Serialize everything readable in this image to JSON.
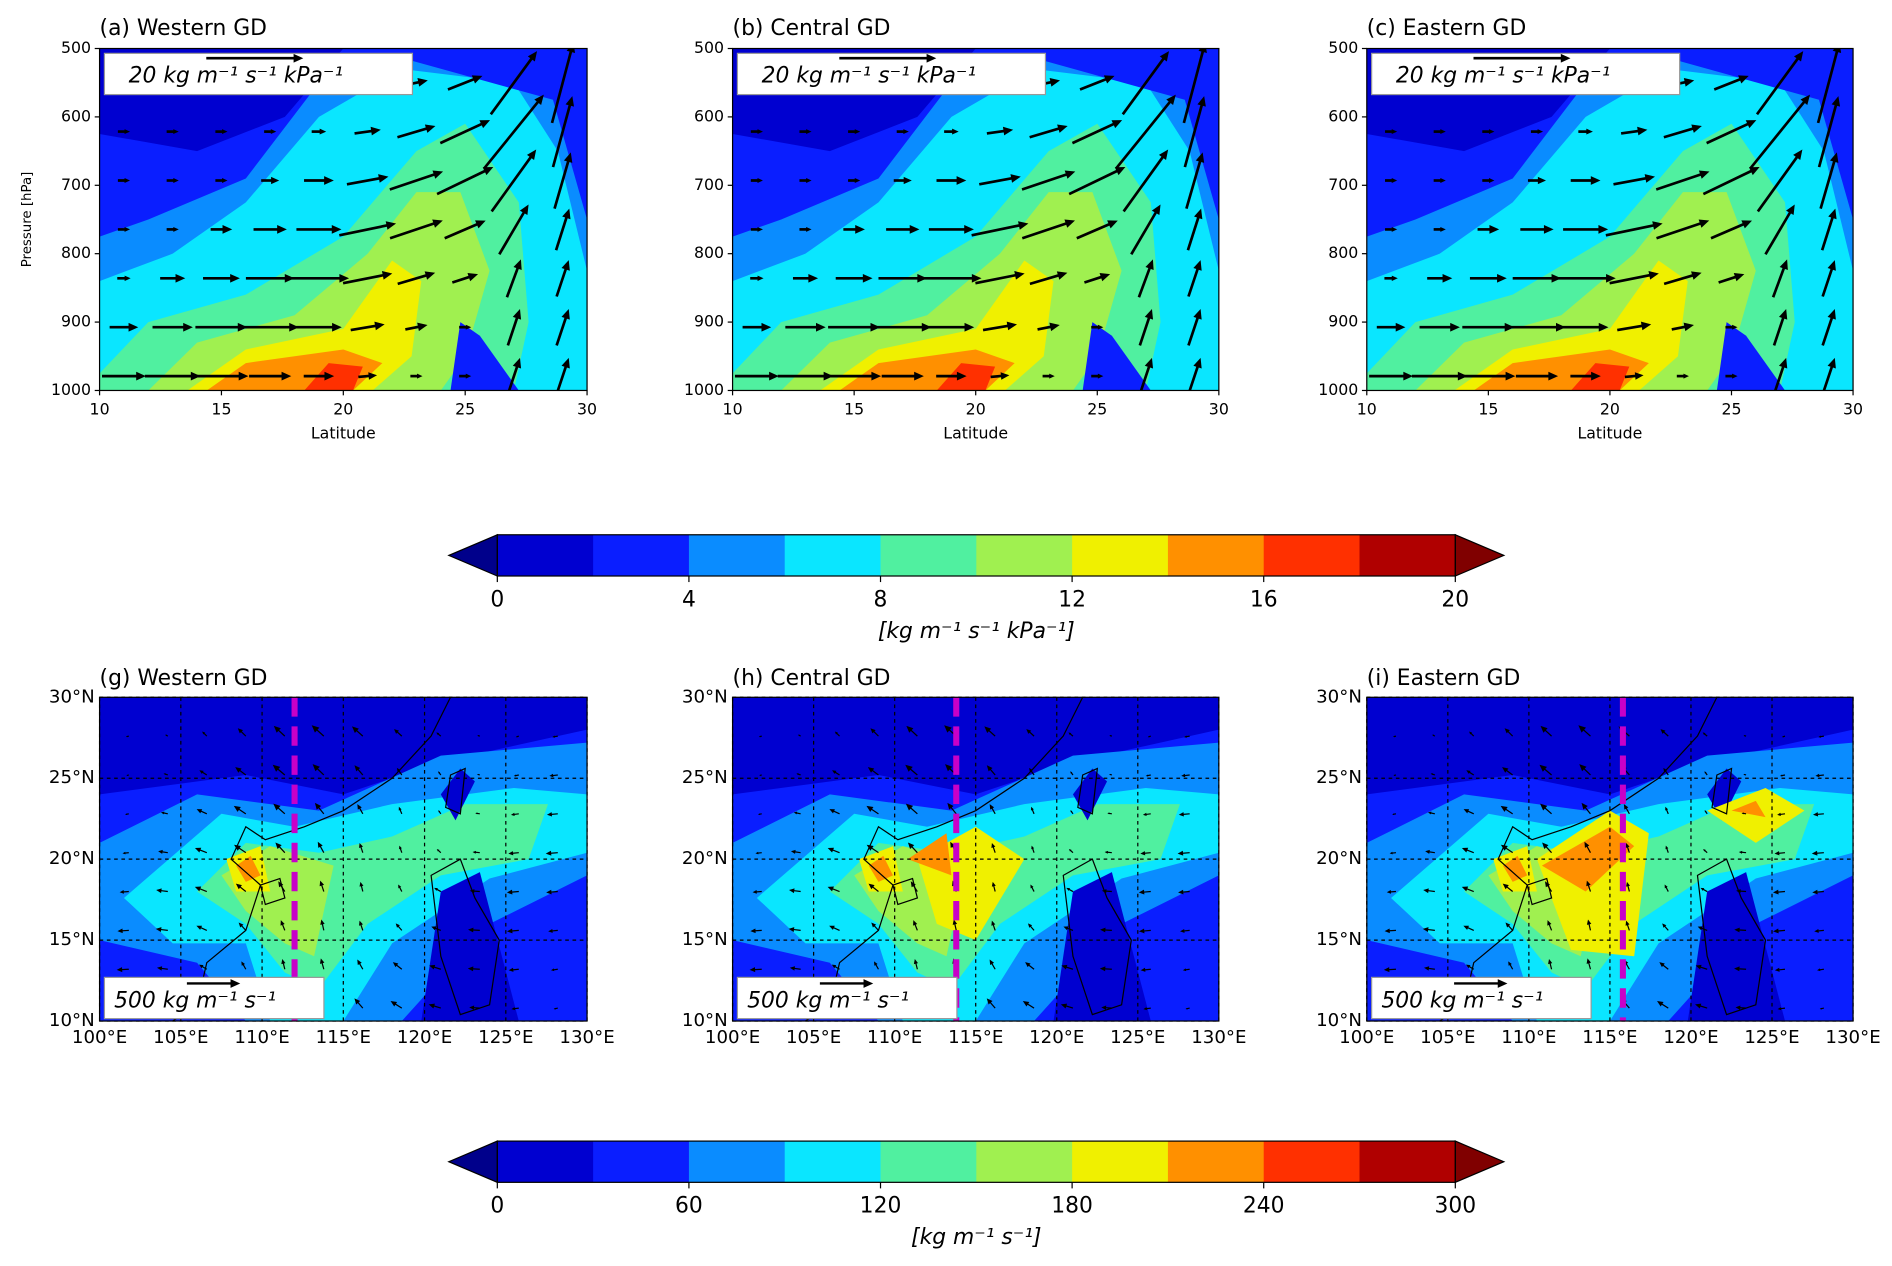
{
  "chart_data": [
    {
      "type": "contour",
      "title": "(a) Western GD",
      "xlabel": "Latitude",
      "ylabel": "Pressure [hPa]",
      "reference_vector_label": "20 kg m⁻¹ s⁻¹ kPa⁻¹",
      "xlim": [
        10,
        30
      ],
      "xticks": [
        10,
        15,
        20,
        25,
        30
      ],
      "ylim": [
        1000,
        500
      ],
      "yticks": [
        500,
        600,
        700,
        800,
        900,
        1000
      ]
    },
    {
      "type": "contour",
      "title": "(b) Central GD",
      "xlabel": "Latitude",
      "reference_vector_label": "20 kg m⁻¹ s⁻¹ kPa⁻¹",
      "xlim": [
        10,
        30
      ],
      "xticks": [
        10,
        15,
        20,
        25,
        30
      ],
      "ylim": [
        1000,
        500
      ],
      "yticks": [
        500,
        600,
        700,
        800,
        900,
        1000
      ]
    },
    {
      "type": "contour",
      "title": "(c) Eastern GD",
      "xlabel": "Latitude",
      "reference_vector_label": "20 kg m⁻¹ s⁻¹ kPa⁻¹",
      "xlim": [
        10,
        30
      ],
      "xticks": [
        10,
        15,
        20,
        25,
        30
      ],
      "ylim": [
        1000,
        500
      ],
      "yticks": [
        500,
        600,
        700,
        800,
        900,
        1000
      ]
    },
    {
      "type": "map",
      "title": "(g) Western GD",
      "reference_vector_label": "500 kg m⁻¹ s⁻¹",
      "dashed_line_x": 112,
      "dashed_line_color": "#c800c8",
      "xlim": [
        100,
        130
      ],
      "xticks": [
        {
          "value": 100,
          "label": "100°E"
        },
        {
          "value": 105,
          "label": "105°E"
        },
        {
          "value": 110,
          "label": "110°E"
        },
        {
          "value": 115,
          "label": "115°E"
        },
        {
          "value": 120,
          "label": "120°E"
        },
        {
          "value": 125,
          "label": "125°E"
        },
        {
          "value": 130,
          "label": "130°E"
        }
      ],
      "ylim": [
        10,
        30
      ],
      "yticks": [
        {
          "value": 10,
          "label": "10°N"
        },
        {
          "value": 15,
          "label": "15°N"
        },
        {
          "value": 20,
          "label": "20°N"
        },
        {
          "value": 25,
          "label": "25°N"
        },
        {
          "value": 30,
          "label": "30°N"
        }
      ],
      "grid": true
    },
    {
      "type": "map",
      "title": "(h) Central GD",
      "reference_vector_label": "500 kg m⁻¹ s⁻¹",
      "dashed_line_x": 113.8,
      "dashed_line_color": "#c800c8",
      "xlim": [
        100,
        130
      ],
      "xticks": [
        {
          "value": 100,
          "label": "100°E"
        },
        {
          "value": 105,
          "label": "105°E"
        },
        {
          "value": 110,
          "label": "110°E"
        },
        {
          "value": 115,
          "label": "115°E"
        },
        {
          "value": 120,
          "label": "120°E"
        },
        {
          "value": 125,
          "label": "125°E"
        },
        {
          "value": 130,
          "label": "130°E"
        }
      ],
      "ylim": [
        10,
        30
      ],
      "yticks": [
        {
          "value": 10,
          "label": "10°N"
        },
        {
          "value": 15,
          "label": "15°N"
        },
        {
          "value": 20,
          "label": "20°N"
        },
        {
          "value": 25,
          "label": "25°N"
        },
        {
          "value": 30,
          "label": "30°N"
        }
      ],
      "grid": true
    },
    {
      "type": "map",
      "title": "(i) Eastern GD",
      "reference_vector_label": "500 kg m⁻¹ s⁻¹",
      "dashed_line_x": 115.8,
      "dashed_line_color": "#c800c8",
      "xlim": [
        100,
        130
      ],
      "xticks": [
        {
          "value": 100,
          "label": "100°E"
        },
        {
          "value": 105,
          "label": "105°E"
        },
        {
          "value": 110,
          "label": "110°E"
        },
        {
          "value": 115,
          "label": "115°E"
        },
        {
          "value": 120,
          "label": "120°E"
        },
        {
          "value": 125,
          "label": "125°E"
        },
        {
          "value": 130,
          "label": "130°E"
        }
      ],
      "ylim": [
        10,
        30
      ],
      "yticks": [
        {
          "value": 10,
          "label": "10°N"
        },
        {
          "value": 15,
          "label": "15°N"
        },
        {
          "value": 20,
          "label": "20°N"
        },
        {
          "value": 25,
          "label": "25°N"
        },
        {
          "value": 30,
          "label": "30°N"
        }
      ],
      "grid": true
    },
    {
      "type": "colorbar",
      "label": "[kg m⁻¹ s⁻¹ kPa⁻¹]",
      "xlim": [
        0,
        20
      ],
      "xticks": [
        0,
        4,
        8,
        12,
        16,
        20
      ],
      "colors": [
        "#0000d0",
        "#0a1eff",
        "#0a8cff",
        "#0ae6ff",
        "#50f0a0",
        "#a0f050",
        "#f0f000",
        "#ff9000",
        "#ff3000",
        "#b00000"
      ],
      "under_color": "#00008b",
      "over_color": "#800000"
    },
    {
      "type": "colorbar",
      "label": "[kg m⁻¹ s⁻¹]",
      "xlim": [
        0,
        300
      ],
      "xticks": [
        0,
        60,
        120,
        180,
        240,
        300
      ],
      "colors": [
        "#0000d0",
        "#0a1eff",
        "#0a8cff",
        "#0ae6ff",
        "#50f0a0",
        "#a0f050",
        "#f0f000",
        "#ff9000",
        "#ff3000",
        "#b00000"
      ],
      "under_color": "#00008b",
      "over_color": "#800000"
    }
  ]
}
